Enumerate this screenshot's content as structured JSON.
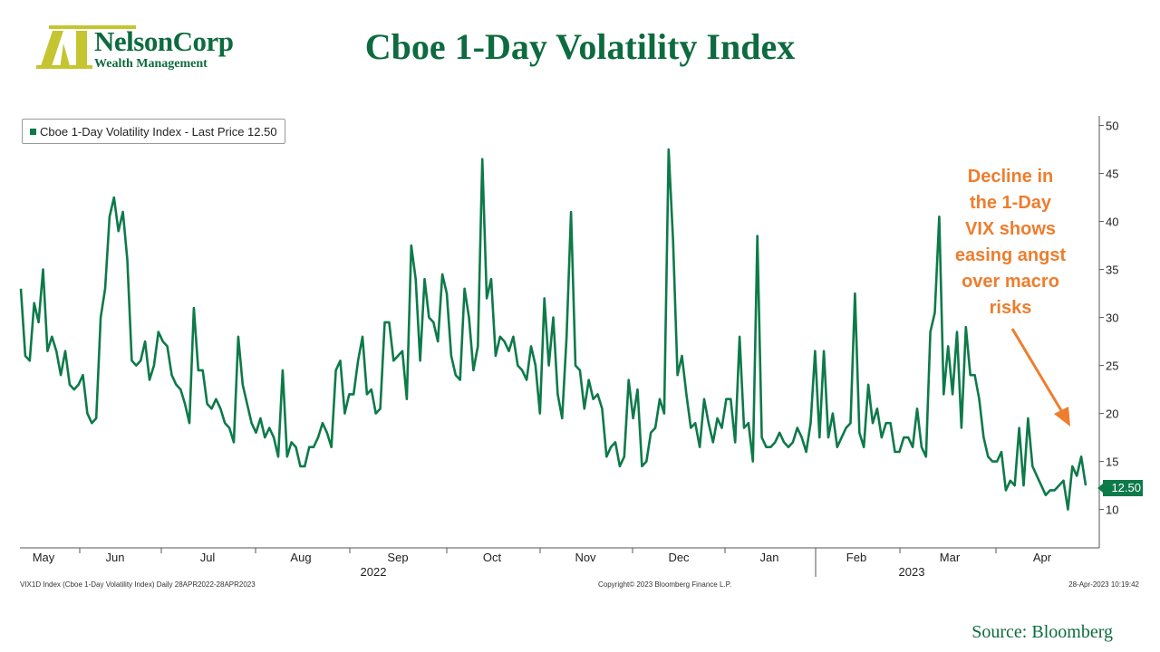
{
  "header": {
    "logo_name": "NelsonCorp",
    "logo_subtitle": "Wealth Management",
    "title": "Cboe 1-Day Volatility Index"
  },
  "legend": {
    "label": "Cboe 1-Day Volatility Index - Last Price 12.50"
  },
  "annotation": {
    "lines": [
      "Decline in",
      "the 1-Day",
      "VIX shows",
      "easing angst",
      "over macro",
      "risks"
    ]
  },
  "footer": {
    "left": "VIX1D Index (Cboe 1-Day Volatility Index)  Daily 28APR2022-28APR2023",
    "center": "Copyright© 2023 Bloomberg Finance L.P.",
    "right": "28-Apr-2023 10:19:42"
  },
  "source": "Source: Bloomberg",
  "colors": {
    "line": "#0d7a4a",
    "title": "#0d6b3f",
    "annotation": "#ee7d2d",
    "logo_mark": "#c4c531"
  },
  "chart_data": {
    "type": "line",
    "title": "Cboe 1-Day Volatility Index",
    "xlabel": "",
    "ylabel": "",
    "ylim": [
      6,
      51
    ],
    "yticks": [
      10,
      15,
      20,
      25,
      30,
      35,
      40,
      45,
      50
    ],
    "x_month_labels": [
      "May",
      "Jun",
      "Jul",
      "Aug",
      "Sep",
      "Oct",
      "Nov",
      "Dec",
      "Jan",
      "Feb",
      "Mar",
      "Apr"
    ],
    "x_year_labels": [
      "2022",
      "2023"
    ],
    "last_price": "12.50",
    "grid": false,
    "legend_position": "top-left",
    "series": [
      {
        "name": "Cboe 1-Day Volatility Index",
        "values": [
          33.0,
          26.0,
          25.5,
          31.5,
          29.5,
          35.0,
          26.5,
          28.0,
          26.5,
          24.0,
          26.5,
          23.0,
          22.5,
          23.0,
          24.0,
          20.0,
          19.0,
          19.5,
          30.0,
          33.0,
          40.5,
          42.5,
          39.0,
          41.0,
          36.0,
          25.5,
          25.0,
          25.5,
          27.5,
          23.5,
          25.0,
          28.5,
          27.5,
          27.0,
          24.0,
          23.0,
          22.5,
          21.0,
          19.0,
          31.0,
          24.5,
          24.5,
          21.0,
          20.5,
          21.5,
          20.5,
          19.0,
          18.5,
          17.0,
          28.0,
          23.0,
          21.0,
          19.0,
          18.0,
          19.5,
          17.5,
          18.5,
          17.5,
          15.5,
          24.5,
          15.5,
          17.0,
          16.5,
          14.5,
          14.5,
          16.5,
          16.5,
          17.5,
          19.0,
          18.0,
          16.5,
          24.5,
          25.5,
          20.0,
          22.0,
          22.0,
          25.5,
          28.0,
          22.0,
          22.5,
          20.0,
          20.5,
          29.5,
          29.5,
          25.5,
          26.0,
          26.5,
          21.5,
          37.5,
          34.0,
          25.5,
          34.0,
          30.0,
          29.5,
          27.5,
          34.5,
          32.5,
          26.0,
          24.0,
          23.5,
          33.0,
          30.0,
          24.5,
          27.0,
          46.5,
          32.0,
          34.0,
          26.0,
          28.0,
          27.5,
          26.5,
          28.0,
          25.0,
          24.5,
          23.5,
          27.0,
          25.0,
          20.0,
          32.0,
          25.0,
          30.0,
          22.0,
          19.5,
          28.0,
          41.0,
          25.0,
          24.5,
          20.5,
          23.5,
          21.5,
          22.0,
          20.5,
          15.5,
          16.5,
          17.0,
          14.5,
          15.5,
          23.5,
          19.5,
          22.5,
          14.5,
          15.0,
          18.0,
          18.5,
          21.5,
          20.0,
          47.5,
          38.0,
          24.0,
          26.0,
          22.0,
          18.5,
          19.0,
          16.5,
          21.5,
          19.0,
          17.0,
          19.5,
          18.5,
          21.5,
          21.5,
          17.0,
          28.0,
          18.5,
          19.0,
          15.0,
          38.5,
          17.5,
          16.5,
          16.5,
          17.0,
          18.0,
          17.0,
          16.5,
          17.0,
          18.5,
          17.5,
          16.0,
          19.0,
          26.5,
          17.5,
          26.5,
          17.5,
          20.0,
          16.5,
          17.5,
          18.5,
          19.0,
          32.5,
          18.0,
          16.5,
          23.0,
          19.0,
          20.5,
          17.5,
          19.0,
          19.0,
          16.0,
          16.0,
          17.5,
          17.5,
          16.5,
          20.5,
          16.5,
          15.5,
          28.5,
          30.5,
          40.5,
          22.0,
          27.0,
          22.0,
          28.5,
          18.5,
          29.0,
          24.0,
          24.0,
          21.5,
          17.5,
          15.5,
          15.0,
          15.0,
          16.0,
          12.0,
          13.0,
          12.5,
          18.5,
          12.5,
          19.5,
          14.5,
          13.5,
          12.5,
          11.5,
          12.0,
          12.0,
          12.5,
          13.0,
          10.0,
          14.5,
          13.5,
          15.5,
          12.5
        ]
      }
    ]
  }
}
